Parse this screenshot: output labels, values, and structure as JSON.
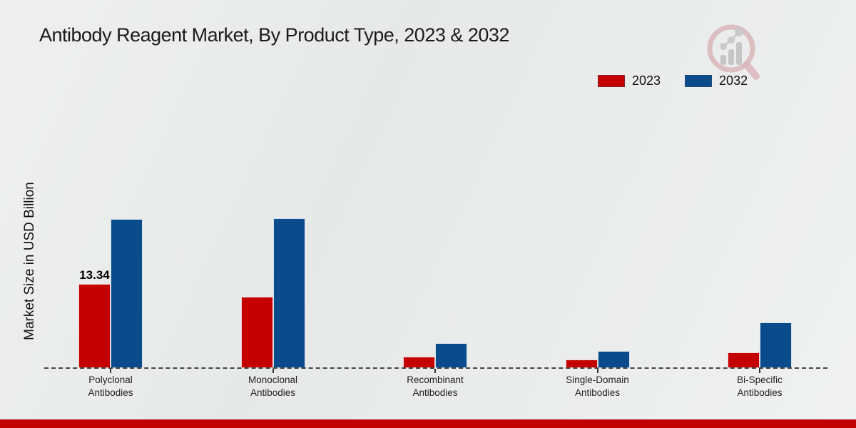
{
  "page": {
    "title": "Antibody Reagent Market, By Product Type, 2023 & 2032"
  },
  "chart_data": {
    "type": "bar",
    "title": "Antibody Reagent Market, By Product Type, 2023 & 2032",
    "xlabel": "",
    "ylabel": "Market Size in USD Billion",
    "ylim": [
      0,
      25
    ],
    "grid": false,
    "legend_position": "top-right",
    "categories": [
      [
        "Polyclonal",
        "Antibodies"
      ],
      [
        "Monoclonal",
        "Antibodies"
      ],
      [
        "Recombinant",
        "Antibodies"
      ],
      [
        "Single-Domain",
        "Antibodies"
      ],
      [
        "Bi-Specific",
        "Antibodies"
      ]
    ],
    "series": [
      {
        "name": "2023",
        "color": "#c40000",
        "values": [
          13.34,
          11.25,
          1.86,
          1.3,
          2.43
        ]
      },
      {
        "name": "2032",
        "color": "#0a4b8c",
        "values": [
          23.63,
          23.68,
          4.01,
          2.66,
          7.18
        ]
      }
    ],
    "data_labels": [
      {
        "series": "2023",
        "category_index": 0,
        "text": "13.34"
      }
    ]
  },
  "colors": {
    "bar_2023": "#c40000",
    "bar_2032": "#0a4b8c",
    "footer_strip": "#c10000",
    "background": "#e9eaea",
    "baseline": "#454545"
  },
  "watermark": {
    "icon": "magnifier-bar-chart-logo"
  }
}
